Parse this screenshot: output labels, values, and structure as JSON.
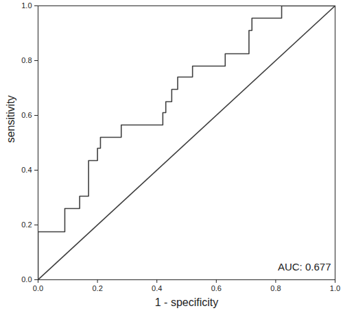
{
  "chart_data": {
    "type": "line",
    "x_label": "1 - specificity",
    "y_label": "sensitivity",
    "annotations": [
      "AUC: 0.677"
    ],
    "series": [
      {
        "color": "#404040",
        "line_style": "solid",
        "x": [
          0,
          0,
          0.09,
          0.09,
          0.14,
          0.14,
          0.17,
          0.17,
          0.2,
          0.2,
          0.21,
          0.21,
          0.28,
          0.28,
          0.42,
          0.42,
          0.43,
          0.43,
          0.45,
          0.45,
          0.47,
          0.47,
          0.52,
          0.52,
          0.63,
          0.63,
          0.71,
          0.71,
          0.72,
          0.72,
          0.82,
          0.82,
          1
        ],
        "values": [
          0,
          0.175,
          0.175,
          0.26,
          0.26,
          0.305,
          0.305,
          0.435,
          0.435,
          0.48,
          0.48,
          0.52,
          0.52,
          0.565,
          0.565,
          0.61,
          0.61,
          0.65,
          0.65,
          0.695,
          0.695,
          0.74,
          0.74,
          0.78,
          0.78,
          0.825,
          0.825,
          0.91,
          0.91,
          0.955,
          0.955,
          1,
          1
        ]
      },
      {
        "color": "#404040",
        "line_style": "solid",
        "x": [
          0,
          1
        ],
        "values": [
          0,
          1
        ]
      }
    ],
    "xlim": [
      0,
      1
    ],
    "ylim": [
      0,
      1
    ],
    "xticks": [
      {
        "value": 0,
        "label": "0.0"
      },
      {
        "value": 0.2,
        "label": "0.2"
      },
      {
        "value": 0.4,
        "label": "0.4"
      },
      {
        "value": 0.6,
        "label": "0.6"
      },
      {
        "value": 0.8,
        "label": "0.8"
      },
      {
        "value": 1,
        "label": "1.0"
      }
    ],
    "yticks": [
      {
        "value": 0,
        "label": "0.0"
      },
      {
        "value": 0.2,
        "label": "0.2"
      },
      {
        "value": 0.4,
        "label": "0.4"
      },
      {
        "value": 0.6,
        "label": "0.6"
      },
      {
        "value": 0.8,
        "label": "0.8"
      },
      {
        "value": 1,
        "label": "1.0"
      }
    ],
    "grid": false
  }
}
